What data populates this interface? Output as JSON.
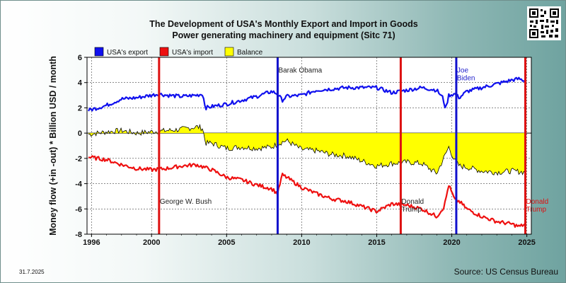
{
  "title_line1": "The Development of USA's Monthly Export and Import in Goods",
  "title_line2": "Power generating machinery and equipment (Sitc 71)",
  "ylabel": "Money flow (+in -out) * Billion USD / month",
  "source": "Source: US Census Bureau",
  "date_stamp": "31.7.2025",
  "qr_icon": "qr-code-icon",
  "chart_data": {
    "type": "line",
    "xlim": [
      1995.7,
      2025.3
    ],
    "ylim": [
      -8,
      6
    ],
    "x_ticks": [
      1996,
      2000,
      2005,
      2010,
      2015,
      2020,
      2025
    ],
    "y_ticks": [
      -8,
      -6,
      -4,
      -2,
      0,
      2,
      4,
      6
    ],
    "grid": true,
    "legend_position": "top-left",
    "series": [
      {
        "name": "USA's export",
        "color": "#1010ee",
        "x": [
          1995.8,
          1997,
          1998,
          1999,
          2000,
          2000.5,
          2001,
          2002,
          2003,
          2003.4,
          2003.6,
          2004,
          2005,
          2006,
          2007,
          2008,
          2008.4,
          2008.7,
          2009,
          2010,
          2011,
          2012,
          2013,
          2014,
          2015,
          2016,
          2017,
          2018,
          2019,
          2019.4,
          2019.6,
          2019.8,
          2020.2,
          2020.5,
          2021,
          2022,
          2023,
          2024,
          2024.5,
          2024.9
        ],
        "values": [
          1.8,
          2.2,
          2.7,
          2.8,
          3.0,
          3.1,
          3.0,
          2.9,
          3.0,
          3.1,
          2.0,
          2.1,
          2.3,
          2.6,
          2.9,
          3.3,
          3.1,
          2.6,
          2.9,
          3.0,
          3.4,
          3.5,
          3.6,
          3.6,
          3.6,
          3.2,
          3.4,
          3.6,
          3.4,
          2.8,
          1.9,
          3.0,
          3.1,
          2.8,
          3.3,
          3.6,
          3.9,
          4.2,
          4.3,
          4.1
        ]
      },
      {
        "name": "USA's import",
        "color": "#ee1010",
        "x": [
          1995.8,
          1997,
          1998,
          1999,
          2000,
          2001,
          2002,
          2003,
          2004,
          2005,
          2006,
          2007,
          2008,
          2008.4,
          2008.7,
          2009,
          2010,
          2011,
          2012,
          2013,
          2014,
          2015,
          2016,
          2017,
          2018,
          2019,
          2019.5,
          2019.8,
          2020.2,
          2020.5,
          2021,
          2022,
          2023,
          2024,
          2024.5,
          2024.9
        ],
        "values": [
          -1.9,
          -2.1,
          -2.5,
          -2.8,
          -2.9,
          -2.8,
          -2.6,
          -2.5,
          -2.9,
          -3.5,
          -3.7,
          -4.1,
          -4.4,
          -4.8,
          -3.3,
          -3.5,
          -4.3,
          -4.8,
          -5.2,
          -5.4,
          -5.8,
          -6.2,
          -5.6,
          -5.7,
          -6.0,
          -6.6,
          -5.8,
          -4.1,
          -5.3,
          -5.4,
          -6.0,
          -6.6,
          -7.0,
          -7.2,
          -7.4,
          -7.2
        ]
      },
      {
        "name": "Balance",
        "color": "#ffff00",
        "x": [
          1995.8,
          1997,
          1998,
          1999,
          2000,
          2001,
          2002,
          2003,
          2003.4,
          2003.6,
          2004,
          2005,
          2006,
          2007,
          2008,
          2008.7,
          2009,
          2010,
          2011,
          2012,
          2013,
          2014,
          2015,
          2016,
          2017,
          2018,
          2019,
          2019.8,
          2020.2,
          2020.5,
          2021,
          2022,
          2023,
          2024,
          2024.9
        ],
        "values": [
          -0.1,
          0.1,
          0.2,
          0.0,
          0.1,
          0.2,
          0.3,
          0.5,
          0.4,
          -0.8,
          -0.8,
          -1.2,
          -1.1,
          -1.2,
          -1.1,
          -0.7,
          -0.6,
          -1.3,
          -1.4,
          -1.7,
          -1.8,
          -2.2,
          -2.6,
          -2.4,
          -2.3,
          -2.4,
          -3.2,
          -1.1,
          -2.2,
          -2.6,
          -2.7,
          -3.0,
          -3.1,
          -3.0,
          -3.1
        ]
      }
    ],
    "annotations": [
      {
        "label": "George W. Bush",
        "x": 2000.5,
        "line_color": "#dd1111",
        "text_color": "#222222",
        "label_y": -5.6
      },
      {
        "label": "Barak Obama",
        "x": 2008.4,
        "line_color": "#1111cc",
        "text_color": "#222222",
        "label_y": 4.8
      },
      {
        "label": "Donald Trump",
        "x": 2016.6,
        "line_color": "#dd1111",
        "text_color": "#222222",
        "label_y": -5.6
      },
      {
        "label": "Joe Biden",
        "x": 2020.3,
        "line_color": "#1111cc",
        "text_color": "#2222cc",
        "label_y": 4.8
      },
      {
        "label": "Donald Trump",
        "x": 2024.9,
        "line_color": "#dd1111",
        "text_color": "#dd1111",
        "label_y": -5.6
      }
    ]
  }
}
